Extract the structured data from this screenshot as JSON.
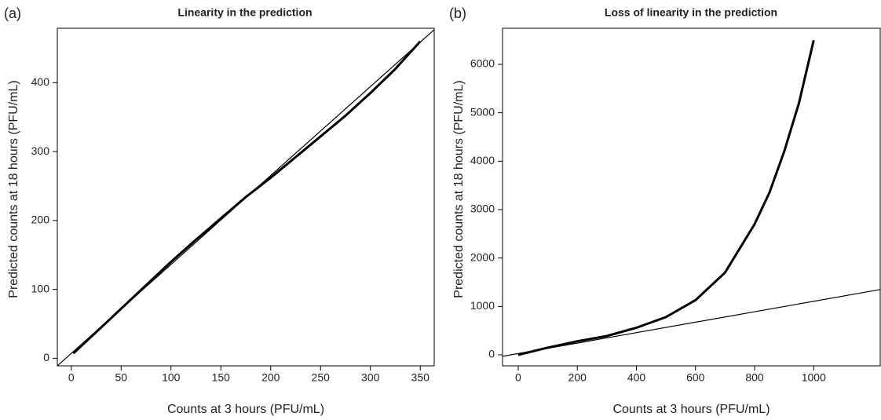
{
  "chart_data": [
    {
      "type": "line",
      "panel_label": "(a)",
      "title": "Linearity in the prediction",
      "x_label": "Counts at 3 hours (PFU/mL)",
      "y_label": "Predicted counts at 18 hours (PFU/mL)",
      "xlim": [
        -14,
        364
      ],
      "ylim": [
        -11,
        479
      ],
      "xticks": [
        0,
        50,
        100,
        150,
        200,
        250,
        300,
        350
      ],
      "yticks": [
        0,
        100,
        200,
        300,
        400
      ],
      "series": [
        {
          "color": "#000000",
          "x": [
            2,
            25,
            50,
            75,
            100,
            125,
            150,
            175,
            200,
            225,
            250,
            275,
            300,
            325,
            350
          ],
          "values": [
            7,
            38,
            72,
            106,
            140,
            172,
            203,
            234,
            262,
            292,
            322,
            352,
            385,
            420,
            460
          ]
        },
        {
          "color": "#000000",
          "x": [
            -14,
            364
          ],
          "values": [
            -11,
            477
          ]
        }
      ]
    },
    {
      "type": "line",
      "panel_label": "(b)",
      "title": "Loss of linearity in the prediction",
      "x_label": "Counts at 3 hours (PFU/mL)",
      "y_label": "Predicted counts at 18 hours (PFU/mL)",
      "xlim": [
        -53,
        1225
      ],
      "ylim": [
        -227,
        6746
      ],
      "xticks": [
        0,
        200,
        400,
        600,
        800,
        1000
      ],
      "yticks": [
        0,
        1000,
        2000,
        3000,
        4000,
        5000,
        6000
      ],
      "series": [
        {
          "color": "#000000",
          "x": [
            0,
            100,
            200,
            300,
            400,
            500,
            600,
            700,
            800,
            850,
            900,
            950,
            1000
          ],
          "values": [
            0,
            150,
            280,
            390,
            560,
            780,
            1130,
            1700,
            2700,
            3350,
            4200,
            5200,
            6500
          ]
        },
        {
          "color": "#000000",
          "x": [
            -53,
            1225
          ],
          "values": [
            -30,
            1350
          ]
        }
      ]
    }
  ]
}
